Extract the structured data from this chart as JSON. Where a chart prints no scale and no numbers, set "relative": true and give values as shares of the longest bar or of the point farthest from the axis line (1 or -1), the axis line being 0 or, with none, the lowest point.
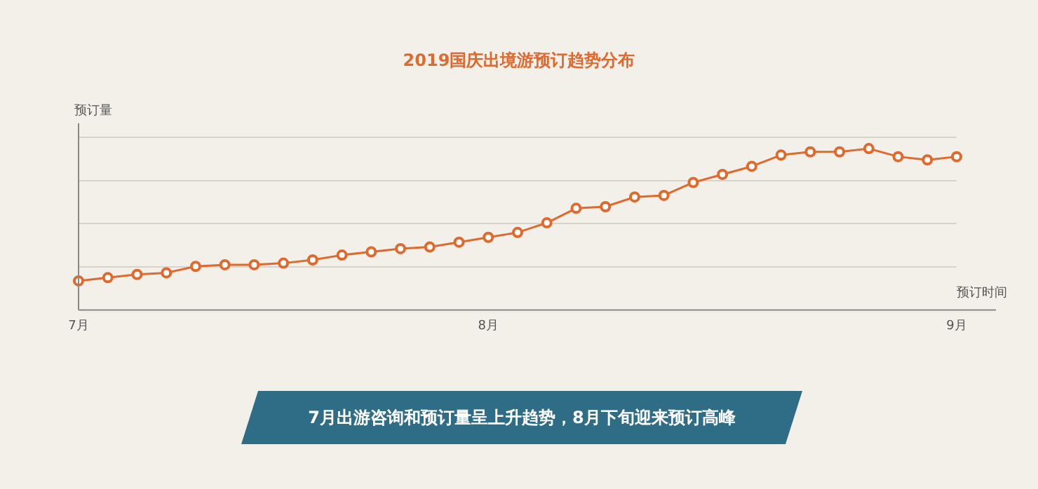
{
  "chart_data": {
    "type": "line",
    "title": "2019国庆出境游预订趋势分布",
    "xlabel": "预订时间",
    "ylabel": "预订量",
    "relative": true,
    "grid": "y",
    "marker": "circle",
    "legend": false,
    "categories": [
      "7月",
      null,
      null,
      null,
      null,
      null,
      null,
      null,
      null,
      null,
      null,
      null,
      null,
      null,
      "8月",
      null,
      null,
      null,
      null,
      null,
      null,
      null,
      null,
      null,
      null,
      null,
      null,
      null,
      null,
      null,
      "9月"
    ],
    "series": [
      {
        "color": "#e0692e",
        "values": [
          0.18,
          0.2,
          0.22,
          0.23,
          0.27,
          0.28,
          0.28,
          0.29,
          0.31,
          0.34,
          0.36,
          0.38,
          0.39,
          0.42,
          0.45,
          0.48,
          0.54,
          0.63,
          0.64,
          0.7,
          0.71,
          0.79,
          0.84,
          0.89,
          0.96,
          0.98,
          0.98,
          1,
          0.95,
          0.93,
          0.95
        ]
      }
    ],
    "annotations": [
      "7月出游咨询和预订量呈上升趋势，8月下旬迎来预订高峰"
    ]
  }
}
